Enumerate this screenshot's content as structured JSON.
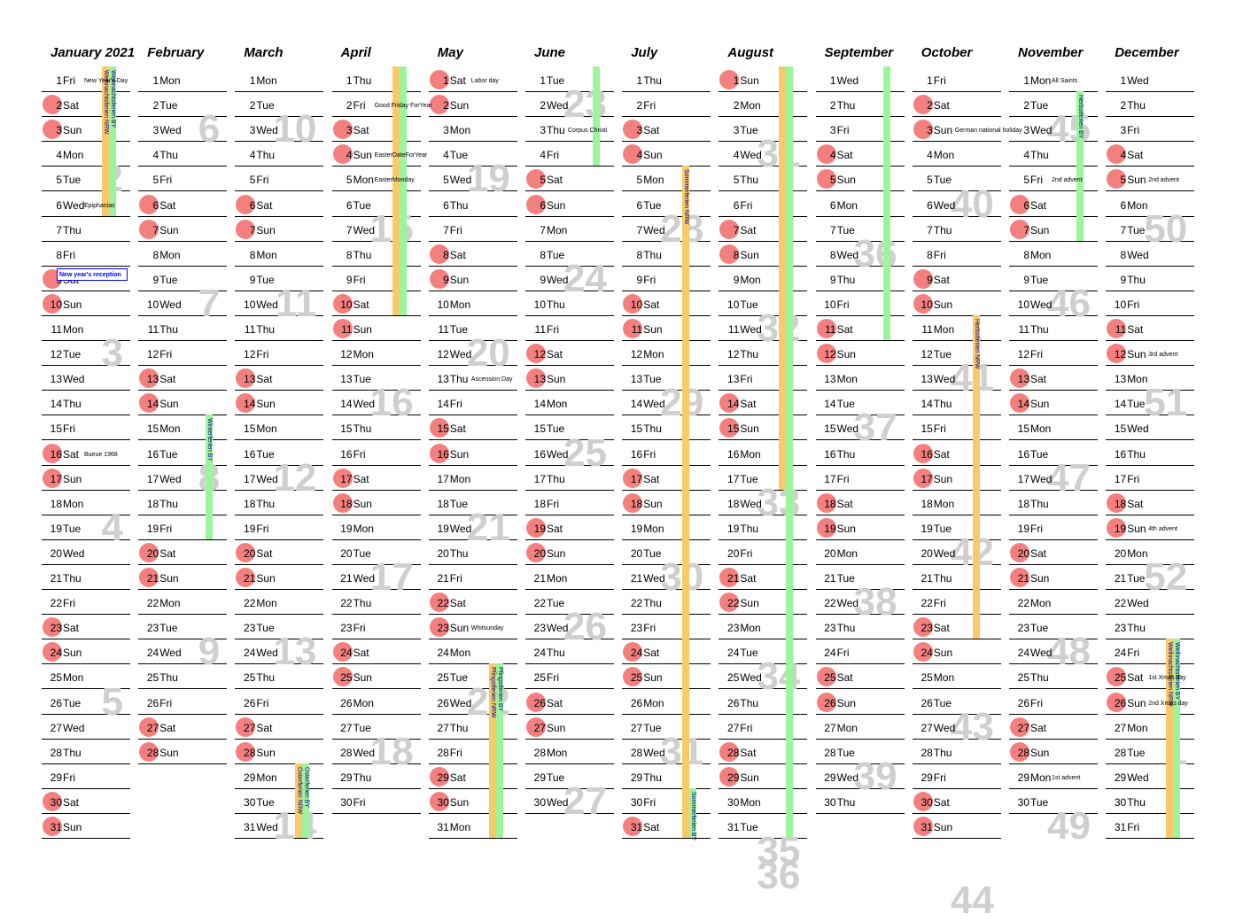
{
  "months": [
    {
      "name": "January 2021",
      "days": 31,
      "start": 4,
      "weeks": [
        [
          "2",
          5
        ],
        [
          "3",
          12
        ],
        [
          "4",
          19
        ],
        [
          "5",
          26
        ]
      ],
      "holidays": {
        "1": "New Year's Day",
        "6": "Epiphanias",
        "16": "Bueue 1968"
      }
    },
    {
      "name": "February",
      "days": 28,
      "start": 0,
      "weeks": [
        [
          "6",
          3
        ],
        [
          "7",
          10
        ],
        [
          "8",
          17
        ],
        [
          "9",
          24
        ]
      ],
      "holidays": {}
    },
    {
      "name": "March",
      "days": 31,
      "start": 0,
      "weeks": [
        [
          "10",
          3
        ],
        [
          "11",
          10
        ],
        [
          "12",
          17
        ],
        [
          "13",
          24
        ],
        [
          "14",
          31
        ]
      ],
      "holidays": {}
    },
    {
      "name": "April",
      "days": 30,
      "start": 3,
      "weeks": [
        [
          "15",
          7
        ],
        [
          "16",
          14
        ],
        [
          "17",
          21
        ],
        [
          "18",
          28
        ]
      ],
      "holidays": {
        "2": "Good Friday ForYear",
        "4": "EasterDateForYear",
        "5": "EasterMonday"
      }
    },
    {
      "name": "May",
      "days": 31,
      "start": 5,
      "weeks": [
        [
          "19",
          5
        ],
        [
          "20",
          12
        ],
        [
          "21",
          19
        ],
        [
          "22",
          26
        ]
      ],
      "holidays": {
        "1": "Labor day",
        "13": "Ascension Day",
        "23": "Whitsunday"
      }
    },
    {
      "name": "June",
      "days": 30,
      "start": 1,
      "weeks": [
        [
          "23",
          2
        ],
        [
          "24",
          9
        ],
        [
          "25",
          16
        ],
        [
          "26",
          23
        ],
        [
          "27",
          30
        ]
      ],
      "holidays": {
        "3": "Corpus Christi"
      }
    },
    {
      "name": "July",
      "days": 31,
      "start": 3,
      "weeks": [
        [
          "28",
          7
        ],
        [
          "29",
          14
        ],
        [
          "30",
          21
        ],
        [
          "31",
          28
        ]
      ],
      "holidays": {}
    },
    {
      "name": "August",
      "days": 31,
      "start": 6,
      "weeks": [
        [
          "31",
          4
        ],
        [
          "32",
          11
        ],
        [
          "33",
          18
        ],
        [
          "34",
          25
        ],
        [
          "35",
          32
        ],
        [
          "36",
          33
        ]
      ],
      "holidays": {}
    },
    {
      "name": "September",
      "days": 30,
      "start": 2,
      "weeks": [
        [
          "36",
          8
        ],
        [
          "37",
          15
        ],
        [
          "38",
          22
        ],
        [
          "39",
          29
        ]
      ],
      "holidays": {}
    },
    {
      "name": "October",
      "days": 31,
      "start": 4,
      "weeks": [
        [
          "40",
          6
        ],
        [
          "41",
          13
        ],
        [
          "42",
          20
        ],
        [
          "43",
          27
        ],
        [
          "44",
          34
        ]
      ],
      "holidays": {
        "3": "German national holiday"
      }
    },
    {
      "name": "November",
      "days": 30,
      "start": 0,
      "weeks": [
        [
          "45",
          3
        ],
        [
          "46",
          10
        ],
        [
          "47",
          17
        ],
        [
          "48",
          24
        ],
        [
          "49",
          31
        ]
      ],
      "holidays": {
        "1": "All Saints",
        "5": "2nd advent",
        "29": "1st advent"
      }
    },
    {
      "name": "December",
      "days": 31,
      "start": 2,
      "weeks": [
        [
          "50",
          7
        ],
        [
          "51",
          14
        ],
        [
          "52",
          21
        ],
        [
          "1",
          28
        ]
      ],
      "holidays": {
        "5": "2nd advent",
        "12": "3rd advent",
        "19": "4th advent",
        "25": "1st Xmas day",
        "26": "2nd Xmas day"
      }
    }
  ],
  "weekday_names": [
    "Mon",
    "Tue",
    "Wed",
    "Thu",
    "Fri",
    "Sat",
    "Sun"
  ],
  "bars": [
    {
      "m": 0,
      "from": 1,
      "to": 6,
      "type": "o",
      "slot": 0,
      "label": "Weihnachtsferien NRW"
    },
    {
      "m": 0,
      "from": 1,
      "to": 6,
      "type": "g",
      "slot": 1,
      "label": "Weihnachtsferien BY"
    },
    {
      "m": 1,
      "from": 15,
      "to": 19,
      "type": "g",
      "slot": 1,
      "label": "Winterferien BY"
    },
    {
      "m": 2,
      "from": 29,
      "to": 31,
      "type": "o",
      "slot": 0,
      "label": "Osterferien NRW"
    },
    {
      "m": 2,
      "from": 29,
      "to": 31,
      "type": "g",
      "slot": 1,
      "label": "Osterferien BY"
    },
    {
      "m": 3,
      "from": 1,
      "to": 10,
      "type": "o",
      "slot": 0,
      "label": ""
    },
    {
      "m": 3,
      "from": 1,
      "to": 10,
      "type": "g",
      "slot": 1,
      "label": ""
    },
    {
      "m": 4,
      "from": 25,
      "to": 31,
      "type": "o",
      "slot": 0,
      "label": "Pfingstferien NRW"
    },
    {
      "m": 4,
      "from": 25,
      "to": 31,
      "type": "g",
      "slot": 1,
      "label": "Pfingstferien BY"
    },
    {
      "m": 5,
      "from": 1,
      "to": 4,
      "type": "g",
      "slot": 1,
      "label": ""
    },
    {
      "m": 6,
      "from": 5,
      "to": 31,
      "type": "o",
      "slot": 0,
      "label": "Sommerferien NRW"
    },
    {
      "m": 6,
      "from": 30,
      "to": 31,
      "type": "g",
      "slot": 1,
      "label": "Sommerferien BY"
    },
    {
      "m": 7,
      "from": 1,
      "to": 17,
      "type": "o",
      "slot": 0,
      "label": ""
    },
    {
      "m": 7,
      "from": 1,
      "to": 31,
      "type": "g",
      "slot": 1,
      "label": ""
    },
    {
      "m": 8,
      "from": 1,
      "to": 11,
      "type": "g",
      "slot": 1,
      "label": ""
    },
    {
      "m": 9,
      "from": 11,
      "to": 23,
      "type": "o",
      "slot": 0,
      "label": "Herbstferien NRW"
    },
    {
      "m": 10,
      "from": 2,
      "to": 7,
      "type": "g",
      "slot": 1,
      "label": "Herbstferien BY"
    },
    {
      "m": 11,
      "from": 24,
      "to": 31,
      "type": "o",
      "slot": 0,
      "label": "Weihnachtsferien NRW"
    },
    {
      "m": 11,
      "from": 24,
      "to": 31,
      "type": "g",
      "slot": 1,
      "label": "Weihnachtsferien BY"
    }
  ],
  "event": {
    "label": "New year's reception"
  },
  "colors": {
    "weekend_dot": "#f47f7f",
    "nrw_bar": "#f9c96a",
    "by_bar": "#9cf49c",
    "week_number": "#cfcfcf"
  }
}
